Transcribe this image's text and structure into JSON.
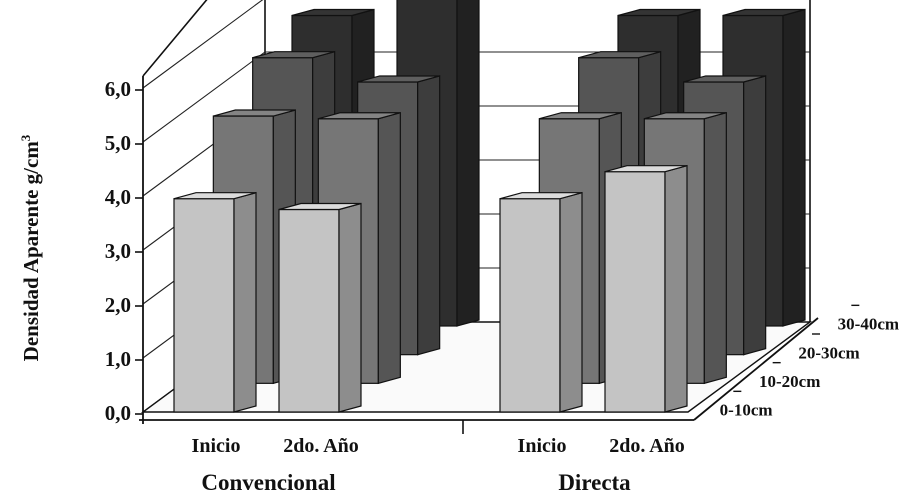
{
  "chart_data": {
    "type": "bar",
    "style": "3d-clustered",
    "ylabel_main": "Densidad Aparente g/cm",
    "ylabel_sup": "3",
    "ylim": [
      0,
      6
    ],
    "yticks": [
      "0,0",
      "1,0",
      "2,0",
      "3,0",
      "4,0",
      "5,0",
      "6,0"
    ],
    "groups": [
      {
        "name": "Convencional",
        "categories": [
          "Inicio",
          "2do. Año"
        ]
      },
      {
        "name": "Directa",
        "categories": [
          "Inicio",
          "2do. Año"
        ]
      }
    ],
    "series": [
      {
        "name": "0-10cm",
        "color": "#c4c4c4",
        "values": [
          3.95,
          3.75,
          3.95,
          4.45
        ]
      },
      {
        "name": "10-20cm",
        "color": "#767676",
        "values": [
          4.95,
          4.9,
          4.9,
          4.9
        ]
      },
      {
        "name": "20-30cm",
        "color": "#555555",
        "values": [
          5.5,
          5.05,
          5.5,
          5.05
        ]
      },
      {
        "name": "30-40cm",
        "color": "#2e2e2e",
        "values": [
          5.75,
          6.3,
          5.75,
          5.75
        ]
      }
    ],
    "grid": true
  }
}
